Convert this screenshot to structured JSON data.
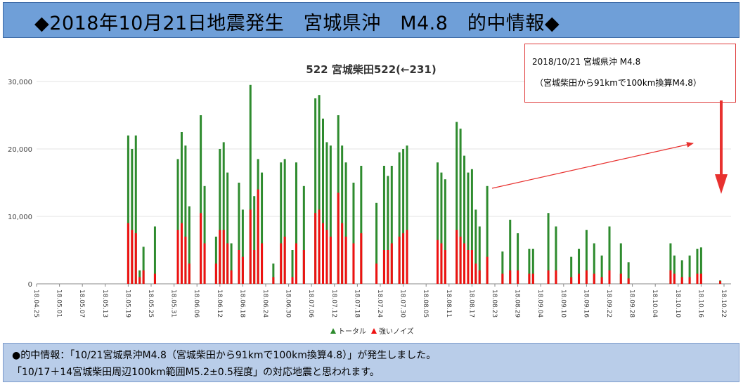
{
  "header": {
    "title": "◆2018年10月21日地震発生　宮城県沖　M4.8　的中情報◆"
  },
  "callout": {
    "line1": "2018/10/21 宮城県沖 M4.8",
    "line2": "（宮城柴田から91kmで100km換算M4.8）"
  },
  "footer": {
    "line1": "●的中情報：「10/21宮城県沖M4.8（宮城柴田から91kmで100km換算4.8）」が発生しました。",
    "line2": "「10/17＋14宮城柴田周辺100km範囲M5.2±0.5程度」の対応地震と思われます。"
  },
  "colors": {
    "total": "#2e8b2e",
    "noise": "#ee1111",
    "arrow": "#e8312f",
    "grid": "#e3e3e3",
    "header_bg": "#6f9fd8",
    "footer_bg": "#b9cde9"
  },
  "chart_data": {
    "type": "bar",
    "title": "522 宮城柴田522(←231)",
    "xlabel": "",
    "ylabel": "",
    "ylim": [
      0,
      30000
    ],
    "yticks": [
      "0",
      "10,000",
      "20,000",
      "30,000"
    ],
    "x_start": "18.04.25",
    "x_end": "18.10.22",
    "categories": [
      "18.04.25",
      "18.05.01",
      "18.05.07",
      "18.05.13",
      "18.05.19",
      "18.05.25",
      "18.05.31",
      "18.06.06",
      "18.06.12",
      "18.06.18",
      "18.06.24",
      "18.06.30",
      "18.07.06",
      "18.07.12",
      "18.07.18",
      "18.07.24",
      "18.07.30",
      "18.08.05",
      "18.08.11",
      "18.08.17",
      "18.08.23",
      "18.08.29",
      "18.09.04",
      "18.09.10",
      "18.09.16",
      "18.09.22",
      "18.09.28",
      "18.10.04",
      "18.10.10",
      "18.10.16",
      "18.10.22"
    ],
    "legend": {
      "position": "bottom",
      "entries": [
        "トータル",
        "強いノイズ"
      ]
    },
    "series": [
      {
        "name": "トータル",
        "values": [
          [
            "18.05.19",
            22000
          ],
          [
            "18.05.20",
            20000
          ],
          [
            "18.05.21",
            22000
          ],
          [
            "18.05.22",
            2000
          ],
          [
            "18.05.23",
            5500
          ],
          [
            "18.05.26",
            8500
          ],
          [
            "18.06.01",
            18500
          ],
          [
            "18.06.02",
            22500
          ],
          [
            "18.06.03",
            20500
          ],
          [
            "18.06.04",
            11500
          ],
          [
            "18.06.07",
            25000
          ],
          [
            "18.06.08",
            14500
          ],
          [
            "18.06.11",
            7000
          ],
          [
            "18.06.12",
            20000
          ],
          [
            "18.06.13",
            21000
          ],
          [
            "18.06.14",
            16500
          ],
          [
            "18.06.15",
            6000
          ],
          [
            "18.06.17",
            15000
          ],
          [
            "18.06.18",
            11000
          ],
          [
            "18.06.20",
            29500
          ],
          [
            "18.06.21",
            13000
          ],
          [
            "18.06.22",
            18500
          ],
          [
            "18.06.23",
            16500
          ],
          [
            "18.06.26",
            3000
          ],
          [
            "18.06.28",
            18000
          ],
          [
            "18.06.29",
            18500
          ],
          [
            "18.07.01",
            5000
          ],
          [
            "18.07.02",
            18000
          ],
          [
            "18.07.04",
            14500
          ],
          [
            "18.07.07",
            27500
          ],
          [
            "18.07.08",
            28000
          ],
          [
            "18.07.09",
            24500
          ],
          [
            "18.07.10",
            21000
          ],
          [
            "18.07.11",
            20500
          ],
          [
            "18.07.13",
            25000
          ],
          [
            "18.07.14",
            20500
          ],
          [
            "18.07.15",
            18000
          ],
          [
            "18.07.17",
            15000
          ],
          [
            "18.07.19",
            17500
          ],
          [
            "18.07.23",
            12000
          ],
          [
            "18.07.25",
            17500
          ],
          [
            "18.07.26",
            16000
          ],
          [
            "18.07.27",
            17500
          ],
          [
            "18.07.29",
            19500
          ],
          [
            "18.07.30",
            20000
          ],
          [
            "18.07.31",
            20500
          ],
          [
            "18.08.08",
            18000
          ],
          [
            "18.08.09",
            16500
          ],
          [
            "18.08.10",
            15500
          ],
          [
            "18.08.13",
            24000
          ],
          [
            "18.08.14",
            23000
          ],
          [
            "18.08.15",
            19000
          ],
          [
            "18.08.16",
            16500
          ],
          [
            "18.08.17",
            17000
          ],
          [
            "18.08.18",
            11000
          ],
          [
            "18.08.19",
            8500
          ],
          [
            "18.08.21",
            14500
          ],
          [
            "18.08.25",
            4800
          ],
          [
            "18.08.27",
            9500
          ],
          [
            "18.08.29",
            7500
          ],
          [
            "18.09.01",
            5200
          ],
          [
            "18.09.02",
            5200
          ],
          [
            "18.09.06",
            10500
          ],
          [
            "18.09.08",
            8500
          ],
          [
            "18.09.12",
            4000
          ],
          [
            "18.09.14",
            5200
          ],
          [
            "18.09.16",
            8000
          ],
          [
            "18.09.18",
            6000
          ],
          [
            "18.09.20",
            4200
          ],
          [
            "18.09.22",
            8500
          ],
          [
            "18.09.25",
            6000
          ],
          [
            "18.09.27",
            3200
          ],
          [
            "18.10.08",
            6000
          ],
          [
            "18.10.09",
            4200
          ],
          [
            "18.10.11",
            3500
          ],
          [
            "18.10.13",
            4200
          ],
          [
            "18.10.15",
            5200
          ],
          [
            "18.10.16",
            5400
          ],
          [
            "18.10.21",
            500
          ]
        ]
      },
      {
        "name": "強いノイズ",
        "values": [
          [
            "18.05.19",
            9000
          ],
          [
            "18.05.20",
            8000
          ],
          [
            "18.05.21",
            7500
          ],
          [
            "18.05.22",
            1000
          ],
          [
            "18.05.23",
            2000
          ],
          [
            "18.05.26",
            1500
          ],
          [
            "18.06.01",
            8000
          ],
          [
            "18.06.02",
            9000
          ],
          [
            "18.06.03",
            7000
          ],
          [
            "18.06.04",
            3000
          ],
          [
            "18.06.07",
            10500
          ],
          [
            "18.06.08",
            6000
          ],
          [
            "18.06.11",
            3000
          ],
          [
            "18.06.12",
            8000
          ],
          [
            "18.06.13",
            8000
          ],
          [
            "18.06.14",
            6000
          ],
          [
            "18.06.15",
            2000
          ],
          [
            "18.06.17",
            5000
          ],
          [
            "18.06.18",
            4000
          ],
          [
            "18.06.20",
            11000
          ],
          [
            "18.06.21",
            5000
          ],
          [
            "18.06.22",
            14000
          ],
          [
            "18.06.23",
            6000
          ],
          [
            "18.06.26",
            1000
          ],
          [
            "18.06.28",
            6000
          ],
          [
            "18.06.29",
            7000
          ],
          [
            "18.07.01",
            1000
          ],
          [
            "18.07.02",
            6000
          ],
          [
            "18.07.04",
            5000
          ],
          [
            "18.07.07",
            10500
          ],
          [
            "18.07.08",
            11000
          ],
          [
            "18.07.09",
            9000
          ],
          [
            "18.07.10",
            8000
          ],
          [
            "18.07.11",
            7000
          ],
          [
            "18.07.13",
            13500
          ],
          [
            "18.07.14",
            9000
          ],
          [
            "18.07.15",
            7000
          ],
          [
            "18.07.17",
            6000
          ],
          [
            "18.07.19",
            7500
          ],
          [
            "18.07.23",
            3000
          ],
          [
            "18.07.25",
            5000
          ],
          [
            "18.07.26",
            5000
          ],
          [
            "18.07.27",
            6000
          ],
          [
            "18.07.29",
            7000
          ],
          [
            "18.07.30",
            7500
          ],
          [
            "18.07.31",
            8000
          ],
          [
            "18.08.08",
            6500
          ],
          [
            "18.08.09",
            6000
          ],
          [
            "18.08.10",
            5000
          ],
          [
            "18.08.13",
            8000
          ],
          [
            "18.08.14",
            7000
          ],
          [
            "18.08.15",
            6000
          ],
          [
            "18.08.16",
            5000
          ],
          [
            "18.08.17",
            5000
          ],
          [
            "18.08.18",
            3000
          ],
          [
            "18.08.19",
            2000
          ],
          [
            "18.08.21",
            4000
          ],
          [
            "18.08.25",
            1500
          ],
          [
            "18.08.27",
            2000
          ],
          [
            "18.08.29",
            2000
          ],
          [
            "18.09.01",
            1500
          ],
          [
            "18.09.02",
            1500
          ],
          [
            "18.09.06",
            2000
          ],
          [
            "18.09.08",
            2000
          ],
          [
            "18.09.12",
            1000
          ],
          [
            "18.09.14",
            1500
          ],
          [
            "18.09.16",
            2000
          ],
          [
            "18.09.18",
            1500
          ],
          [
            "18.09.20",
            1000
          ],
          [
            "18.09.22",
            2000
          ],
          [
            "18.09.25",
            1500
          ],
          [
            "18.09.27",
            800
          ],
          [
            "18.10.08",
            2000
          ],
          [
            "18.10.09",
            1500
          ],
          [
            "18.10.11",
            1000
          ],
          [
            "18.10.13",
            1000
          ],
          [
            "18.10.15",
            1500
          ],
          [
            "18.10.16",
            1500
          ],
          [
            "18.10.21",
            400
          ]
        ]
      }
    ]
  }
}
